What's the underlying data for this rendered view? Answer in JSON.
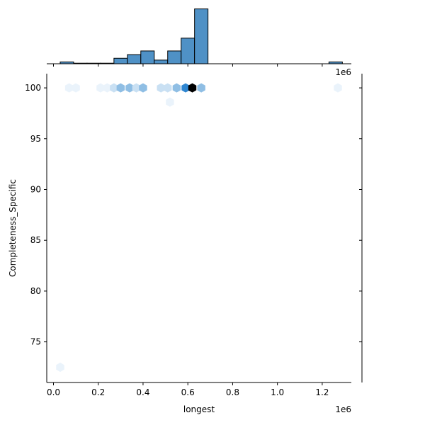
{
  "chart_data": {
    "type": "hexbin",
    "xlabel": "longest",
    "ylabel": "Completeness_Specific",
    "x_offset_text": "1e6",
    "top_marginal_offset_text": "1e6",
    "xlim": [
      -30000,
      1330000
    ],
    "ylim": [
      71.0,
      101.4
    ],
    "x_ticks": [
      0,
      200000,
      400000,
      600000,
      800000,
      1000000,
      1200000
    ],
    "x_tick_labels": [
      "0.0",
      "0.2",
      "0.4",
      "0.6",
      "0.8",
      "1.0",
      "1.2"
    ],
    "y_ticks": [
      75,
      80,
      85,
      90,
      95,
      100
    ],
    "y_tick_labels": [
      "75",
      "80",
      "85",
      "90",
      "95",
      "100"
    ],
    "colors": {
      "hist_fill": "#4f91c6",
      "hist_edge": "#000000",
      "hex_max": "#000000",
      "hex_high": "#2f86d1",
      "hex_mid": "#8fbee4",
      "hex_low": "#c9e0f3",
      "hex_faint": "#eaf3fb"
    },
    "hexbins": [
      {
        "x": 70000,
        "y": 100,
        "density": 0.15
      },
      {
        "x": 100000,
        "y": 100,
        "density": 0.12
      },
      {
        "x": 210000,
        "y": 100,
        "density": 0.15
      },
      {
        "x": 240000,
        "y": 100,
        "density": 0.18
      },
      {
        "x": 270000,
        "y": 100,
        "density": 0.22
      },
      {
        "x": 300000,
        "y": 100,
        "density": 0.45
      },
      {
        "x": 340000,
        "y": 100,
        "density": 0.55
      },
      {
        "x": 370000,
        "y": 100,
        "density": 0.35
      },
      {
        "x": 400000,
        "y": 100,
        "density": 0.45
      },
      {
        "x": 480000,
        "y": 100,
        "density": 0.22
      },
      {
        "x": 510000,
        "y": 100,
        "density": 0.3
      },
      {
        "x": 550000,
        "y": 100,
        "density": 0.45
      },
      {
        "x": 590000,
        "y": 100,
        "density": 0.8
      },
      {
        "x": 620000,
        "y": 100,
        "density": 1.0
      },
      {
        "x": 660000,
        "y": 100,
        "density": 0.5
      },
      {
        "x": 1270000,
        "y": 100,
        "density": 0.1
      },
      {
        "x": 520000,
        "y": 98.6,
        "density": 0.08
      },
      {
        "x": 30000,
        "y": 72.5,
        "density": 0.08
      }
    ],
    "top_hist": {
      "bin_edges": [
        30000,
        90000,
        150000,
        210000,
        270000,
        330000,
        390000,
        450000,
        510000,
        570000,
        630000,
        690000,
        750000,
        810000,
        870000,
        930000,
        990000,
        1050000,
        1110000,
        1170000,
        1230000,
        1290000
      ],
      "counts": [
        1,
        0.3,
        0.3,
        0.3,
        3,
        5,
        7,
        2,
        7,
        14,
        30,
        0,
        0,
        0,
        0,
        0,
        0,
        0,
        0,
        0,
        1
      ],
      "ylim": [
        0,
        31
      ]
    }
  }
}
